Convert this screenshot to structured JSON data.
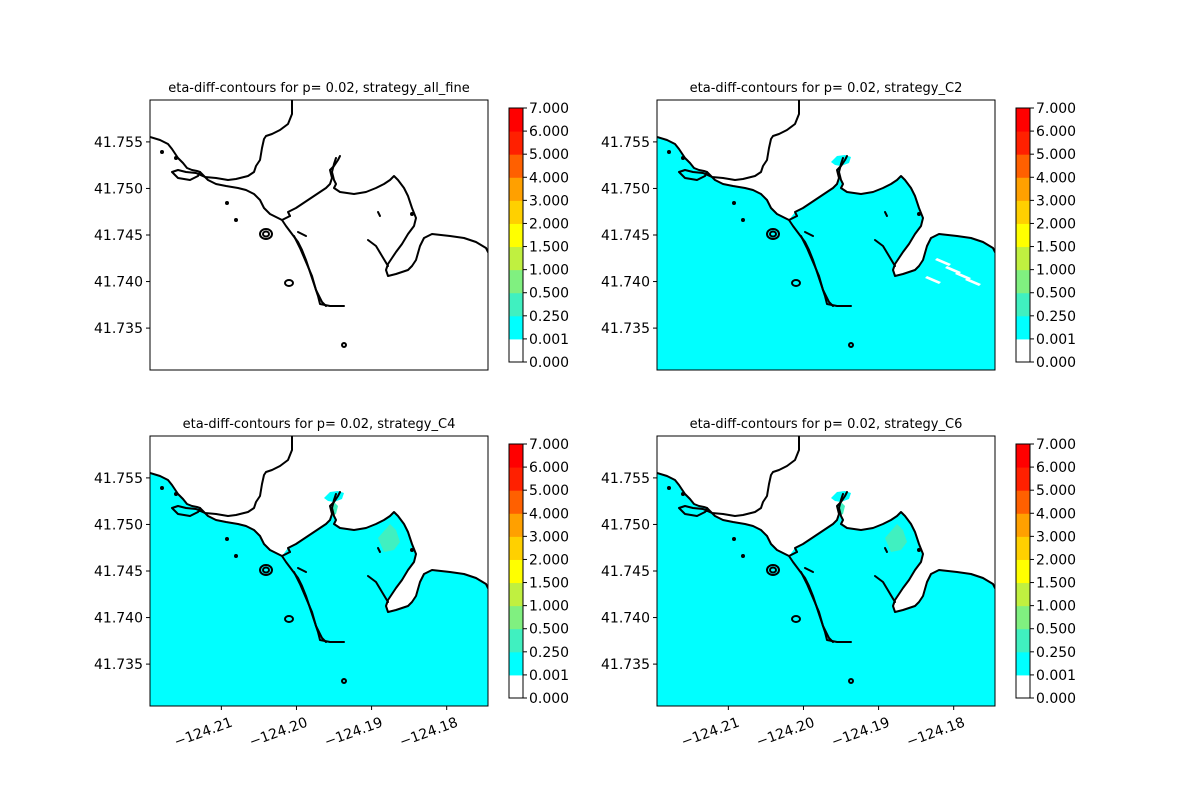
{
  "chart_data": [
    {
      "type": "heatmap",
      "title": "eta-diff-contours for p= 0.02, strategy_all_fine",
      "yticks": [
        "41.755",
        "41.750",
        "41.745",
        "41.740",
        "41.735"
      ],
      "ytick_values": [
        41.755,
        41.75,
        41.745,
        41.74,
        41.735
      ],
      "ylim": [
        41.7305,
        41.7595
      ],
      "xlim": [
        -124.2195,
        -124.1745
      ],
      "xticks_shown": false,
      "fill": "none",
      "colorbar": {
        "levels": [
          0.0,
          0.001,
          0.25,
          0.5,
          1.0,
          1.5,
          2.0,
          3.0,
          4.0,
          5.0,
          6.0,
          7.0
        ],
        "labels": [
          "0.000",
          "0.001",
          "0.250",
          "0.500",
          "1.000",
          "1.500",
          "2.000",
          "3.000",
          "4.000",
          "5.000",
          "6.000",
          "7.000"
        ],
        "colors": [
          "#ffffff",
          "#00ffff",
          "#40f0c0",
          "#80f080",
          "#c0f040",
          "#ffff00",
          "#ffd000",
          "#ffa000",
          "#ff6000",
          "#ff2000",
          "#ff0000"
        ]
      }
    },
    {
      "type": "heatmap",
      "title": "eta-diff-contours for p= 0.02, strategy_C2",
      "yticks": [
        "41.755",
        "41.750",
        "41.745",
        "41.740",
        "41.735"
      ],
      "ytick_values": [
        41.755,
        41.75,
        41.745,
        41.74,
        41.735
      ],
      "ylim": [
        41.7305,
        41.7595
      ],
      "xlim": [
        -124.2195,
        -124.1745
      ],
      "xticks_shown": false,
      "fill": "0.001-0.250",
      "colorbar": {
        "levels": [
          0.0,
          0.001,
          0.25,
          0.5,
          1.0,
          1.5,
          2.0,
          3.0,
          4.0,
          5.0,
          6.0,
          7.0
        ],
        "labels": [
          "0.000",
          "0.001",
          "0.250",
          "0.500",
          "1.000",
          "1.500",
          "2.000",
          "3.000",
          "4.000",
          "5.000",
          "6.000",
          "7.000"
        ],
        "colors": [
          "#ffffff",
          "#00ffff",
          "#40f0c0",
          "#80f080",
          "#c0f040",
          "#ffff00",
          "#ffd000",
          "#ffa000",
          "#ff6000",
          "#ff2000",
          "#ff0000"
        ]
      }
    },
    {
      "type": "heatmap",
      "title": "eta-diff-contours for p= 0.02, strategy_C4",
      "yticks": [
        "41.755",
        "41.750",
        "41.745",
        "41.740",
        "41.735"
      ],
      "ytick_values": [
        41.755,
        41.75,
        41.745,
        41.74,
        41.735
      ],
      "ylim": [
        41.7305,
        41.7595
      ],
      "xlim": [
        -124.2195,
        -124.1745
      ],
      "xticks_shown": true,
      "xticks": [
        "−124.21",
        "−124.20",
        "−124.19",
        "−124.18"
      ],
      "xtick_values": [
        -124.21,
        -124.2,
        -124.19,
        -124.18
      ],
      "fill": "0.001-0.250",
      "colorbar": {
        "levels": [
          0.0,
          0.001,
          0.25,
          0.5,
          1.0,
          1.5,
          2.0,
          3.0,
          4.0,
          5.0,
          6.0,
          7.0
        ],
        "labels": [
          "0.000",
          "0.001",
          "0.250",
          "0.500",
          "1.000",
          "1.500",
          "2.000",
          "3.000",
          "4.000",
          "5.000",
          "6.000",
          "7.000"
        ],
        "colors": [
          "#ffffff",
          "#00ffff",
          "#40f0c0",
          "#80f080",
          "#c0f040",
          "#ffff00",
          "#ffd000",
          "#ffa000",
          "#ff6000",
          "#ff2000",
          "#ff0000"
        ]
      }
    },
    {
      "type": "heatmap",
      "title": "eta-diff-contours for p= 0.02, strategy_C6",
      "yticks": [
        "41.755",
        "41.750",
        "41.745",
        "41.740",
        "41.735"
      ],
      "ytick_values": [
        41.755,
        41.75,
        41.745,
        41.74,
        41.735
      ],
      "ylim": [
        41.7305,
        41.7595
      ],
      "xlim": [
        -124.2195,
        -124.1745
      ],
      "xticks_shown": true,
      "xticks": [
        "−124.21",
        "−124.20",
        "−124.19",
        "−124.18"
      ],
      "xtick_values": [
        -124.21,
        -124.2,
        -124.19,
        -124.18
      ],
      "fill": "0.001-0.250",
      "colorbar": {
        "levels": [
          0.0,
          0.001,
          0.25,
          0.5,
          1.0,
          1.5,
          2.0,
          3.0,
          4.0,
          5.0,
          6.0,
          7.0
        ],
        "labels": [
          "0.000",
          "0.001",
          "0.250",
          "0.500",
          "1.000",
          "1.500",
          "2.000",
          "3.000",
          "4.000",
          "5.000",
          "6.000",
          "7.000"
        ],
        "colors": [
          "#ffffff",
          "#00ffff",
          "#40f0c0",
          "#80f080",
          "#c0f040",
          "#ffff00",
          "#ffd000",
          "#ffa000",
          "#ff6000",
          "#ff2000",
          "#ff0000"
        ]
      }
    }
  ]
}
